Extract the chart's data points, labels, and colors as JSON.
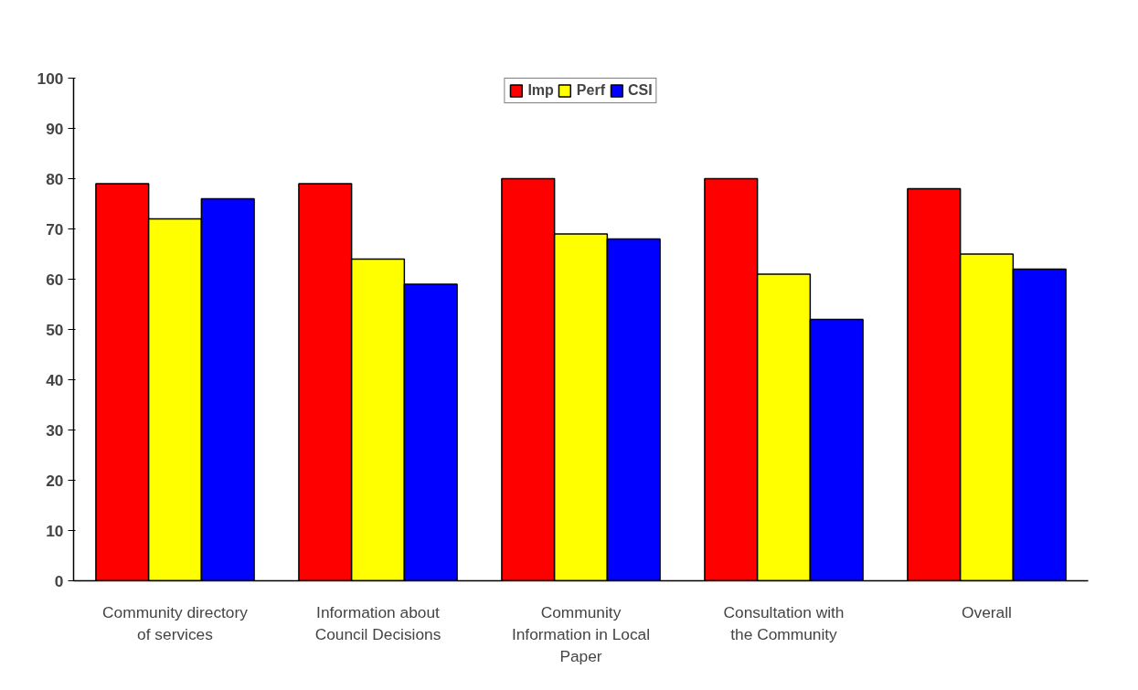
{
  "chart_data": {
    "type": "bar",
    "categories": [
      "Community directory of services",
      "Information about Council Decisions",
      "Community Information in Local Paper",
      "Consultation with the Community",
      "Overall"
    ],
    "series": [
      {
        "name": "Imp",
        "color": "#ff0000",
        "values": [
          79,
          79,
          80,
          80,
          78
        ]
      },
      {
        "name": "Perf",
        "color": "#ffff00",
        "values": [
          72,
          64,
          69,
          61,
          65
        ]
      },
      {
        "name": "CSI",
        "color": "#0000ff",
        "values": [
          76,
          59,
          68,
          52,
          62
        ]
      }
    ],
    "ylim": [
      0,
      100
    ],
    "yticks": [
      0,
      10,
      20,
      30,
      40,
      50,
      60,
      70,
      80,
      90,
      100
    ],
    "grid": false,
    "legend": "top"
  }
}
